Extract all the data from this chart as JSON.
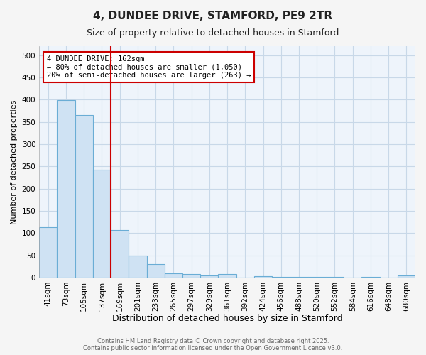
{
  "title": "4, DUNDEE DRIVE, STAMFORD, PE9 2TR",
  "subtitle": "Size of property relative to detached houses in Stamford",
  "xlabel": "Distribution of detached houses by size in Stamford",
  "ylabel": "Number of detached properties",
  "categories": [
    "41sqm",
    "73sqm",
    "105sqm",
    "137sqm",
    "169sqm",
    "201sqm",
    "233sqm",
    "265sqm",
    "297sqm",
    "329sqm",
    "361sqm",
    "392sqm",
    "424sqm",
    "456sqm",
    "488sqm",
    "520sqm",
    "552sqm",
    "584sqm",
    "616sqm",
    "648sqm",
    "680sqm"
  ],
  "values": [
    113,
    398,
    365,
    243,
    106,
    50,
    30,
    9,
    7,
    5,
    7,
    0,
    3,
    1,
    1,
    1,
    1,
    0,
    1,
    0,
    4
  ],
  "bar_color": "#cfe2f3",
  "bar_edge_color": "#6aadd5",
  "bar_edge_width": 0.8,
  "red_line_color": "#cc0000",
  "annotation_line1": "4 DUNDEE DRIVE: 162sqm",
  "annotation_line2": "← 80% of detached houses are smaller (1,050)",
  "annotation_line3": "20% of semi-detached houses are larger (263) →",
  "annotation_box_facecolor": "#ffffff",
  "annotation_box_edgecolor": "#cc0000",
  "grid_color": "#c8d8e8",
  "plot_bg_color": "#eef4fb",
  "background_color": "#f5f5f5",
  "footer_line1": "Contains HM Land Registry data © Crown copyright and database right 2025.",
  "footer_line2": "Contains public sector information licensed under the Open Government Licence v3.0.",
  "ylim": [
    0,
    520
  ],
  "yticks": [
    0,
    50,
    100,
    150,
    200,
    250,
    300,
    350,
    400,
    450,
    500
  ],
  "red_line_index": 3.5,
  "title_fontsize": 11,
  "subtitle_fontsize": 9,
  "ylabel_fontsize": 8,
  "xlabel_fontsize": 9,
  "tick_fontsize": 7.5,
  "annotation_fontsize": 7.5,
  "footer_fontsize": 6
}
